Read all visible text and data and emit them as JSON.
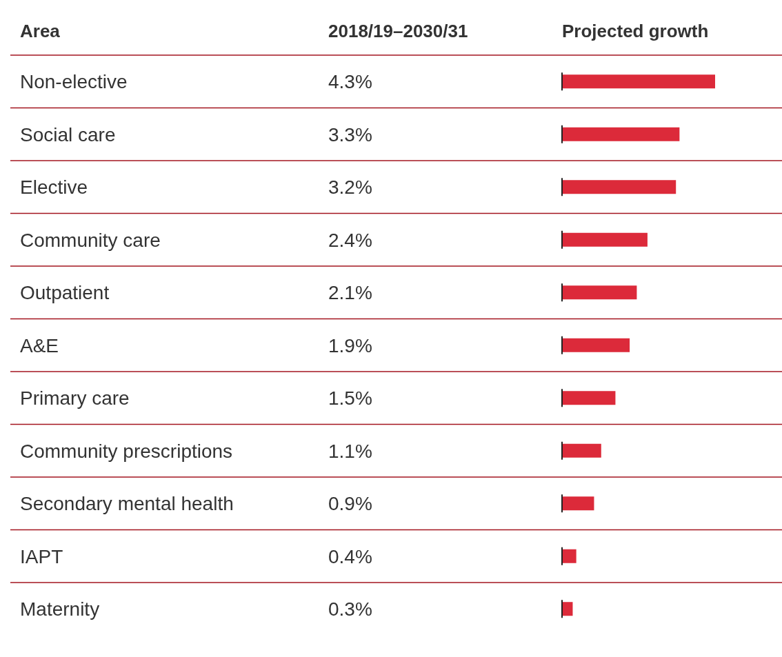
{
  "chart_data": {
    "type": "bar",
    "orientation": "horizontal",
    "ylabel": "Area",
    "xlabel": "Projected growth",
    "annotations": [
      "2018/19–2030/31"
    ],
    "categories": [
      "Non-elective",
      "Social care",
      "Elective",
      "Community care",
      "Outpatient",
      "A&E",
      "Primary care",
      "Community prescriptions",
      "Secondary mental health",
      "IAPT",
      "Maternity"
    ],
    "values": [
      4.3,
      3.3,
      3.2,
      2.4,
      2.1,
      1.9,
      1.5,
      1.1,
      0.9,
      0.4,
      0.3
    ],
    "value_labels": [
      "4.3%",
      "3.3%",
      "3.2%",
      "2.4%",
      "2.1%",
      "1.9%",
      "1.5%",
      "1.1%",
      "0.9%",
      "0.4%",
      "0.3%"
    ],
    "color": "#dc2a3a"
  }
}
